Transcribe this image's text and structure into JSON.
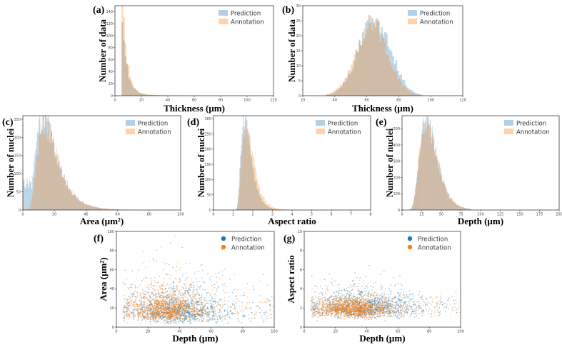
{
  "colors": {
    "prediction": "#1f77b4",
    "annotation": "#ff7f0e"
  },
  "chart_data": [
    {
      "id": "a",
      "letter": "(a)",
      "type": "histogram",
      "xlabel": "Thickness (µm)",
      "ylabel": "Number of data",
      "xlim": [
        0,
        120
      ],
      "ylim": [
        0,
        150
      ],
      "xticks": [
        0,
        20,
        40,
        60,
        80,
        100,
        120
      ],
      "yticks": [
        0,
        20,
        40,
        60,
        80,
        100,
        120,
        140
      ],
      "legend": [
        "Prediction",
        "Annotation"
      ],
      "bins": {
        "start": 5,
        "width": 1.2,
        "count": 80
      },
      "series": [
        {
          "name": "Prediction",
          "shape": "decay",
          "peak": 100,
          "peak_x": 6,
          "decay": 4
        },
        {
          "name": "Annotation",
          "shape": "decay",
          "peak": 143,
          "peak_x": 6,
          "decay": 3.6
        }
      ]
    },
    {
      "id": "b",
      "letter": "(b)",
      "type": "histogram",
      "xlabel": "Thickness (µm)",
      "ylabel": "Number of data",
      "xlim": [
        20,
        120
      ],
      "ylim": [
        0,
        30
      ],
      "xticks": [
        20,
        40,
        60,
        80,
        100,
        120
      ],
      "yticks": [
        0,
        5,
        10,
        15,
        20,
        25,
        30
      ],
      "legend": [
        "Prediction",
        "Annotation"
      ],
      "bins": {
        "start": 34,
        "width": 1.0,
        "count": 80
      },
      "series": [
        {
          "name": "Prediction",
          "shape": "normal",
          "peak": 26,
          "mean": 65,
          "sd": 10
        },
        {
          "name": "Annotation",
          "shape": "normal",
          "peak": 24,
          "mean": 63,
          "sd": 10
        }
      ]
    },
    {
      "id": "c",
      "letter": "(c)",
      "type": "histogram",
      "xlabel": "Area (µm²)",
      "ylabel": "Number of nuclei",
      "xlim": [
        0,
        100
      ],
      "ylim": [
        0,
        260
      ],
      "xticks": [
        0,
        20,
        40,
        60,
        80,
        100
      ],
      "yticks": [
        0,
        50,
        100,
        150,
        200,
        250
      ],
      "legend": [
        "Prediction",
        "Annotation"
      ],
      "bins": {
        "start": 0,
        "width": 0.5,
        "count": 200
      },
      "series": [
        {
          "name": "Prediction",
          "shape": "lognormal",
          "peak": 255,
          "mode": 13,
          "sigma": 0.48,
          "extra": "lowfront"
        },
        {
          "name": "Annotation",
          "shape": "lognormal",
          "peak": 232,
          "mode": 14,
          "sigma": 0.46
        }
      ]
    },
    {
      "id": "d",
      "letter": "(d)",
      "type": "histogram",
      "xlabel": "Aspect ratio",
      "ylabel": "Number of nuclei",
      "xlim": [
        0,
        8
      ],
      "ylim": [
        0,
        310
      ],
      "xticks": [
        0,
        1,
        2,
        3,
        4,
        5,
        6,
        7,
        8
      ],
      "yticks": [
        0,
        50,
        100,
        150,
        200,
        250,
        300
      ],
      "legend": [
        "Prediction",
        "Annotation"
      ],
      "bins": {
        "start": 1,
        "width": 0.04,
        "count": 175
      },
      "series": [
        {
          "name": "Prediction",
          "shape": "lognormal_shift",
          "peak": 305,
          "mode": 1.6,
          "sigma": 0.42,
          "shift": 1
        },
        {
          "name": "Annotation",
          "shape": "lognormal_shift",
          "peak": 280,
          "mode": 1.65,
          "sigma": 0.44,
          "shift": 1
        }
      ]
    },
    {
      "id": "e",
      "letter": "(e)",
      "type": "histogram",
      "xlabel": "Depth (µm)",
      "ylabel": "Number of nuclei",
      "xlim": [
        0,
        200
      ],
      "ylim": [
        0,
        580
      ],
      "xticks": [
        0,
        25,
        50,
        75,
        100,
        125,
        150,
        175,
        200
      ],
      "yticks": [
        0,
        100,
        200,
        300,
        400,
        500
      ],
      "legend": [
        "Prediction",
        "Annotation"
      ],
      "bins": {
        "start": 5,
        "width": 0.75,
        "count": 110
      },
      "series": [
        {
          "name": "Prediction",
          "shape": "lognormal",
          "peak": 560,
          "mode": 31,
          "sigma": 0.34
        },
        {
          "name": "Annotation",
          "shape": "lognormal",
          "peak": 548,
          "mode": 31,
          "sigma": 0.35
        }
      ]
    },
    {
      "id": "f",
      "letter": "(f)",
      "type": "scatter",
      "xlabel": "Depth (µm)",
      "ylabel": "Area (µm²)",
      "xlim": [
        0,
        100
      ],
      "ylim": [
        0,
        100
      ],
      "xticks": [
        0,
        20,
        40,
        60,
        80,
        100
      ],
      "yticks": [
        0,
        20,
        40,
        60,
        80,
        100
      ],
      "legend": [
        "Prediction",
        "Annotation"
      ],
      "series": [
        {
          "name": "Prediction",
          "n": 1400,
          "x_mean": 38,
          "x_sd": 16,
          "y_mode": 14,
          "y_sigma": 0.55
        },
        {
          "name": "Annotation",
          "n": 1500,
          "x_mean": 32,
          "x_sd": 13,
          "y_mode": 16,
          "y_sigma": 0.45
        }
      ]
    },
    {
      "id": "g",
      "letter": "(g)",
      "type": "scatter",
      "xlabel": "Depth (µm)",
      "ylabel": "Aspect ratio",
      "xlim": [
        0,
        100
      ],
      "ylim": [
        0,
        10
      ],
      "xticks": [
        0,
        20,
        40,
        60,
        80,
        100
      ],
      "yticks": [
        0,
        2,
        4,
        6,
        8,
        10
      ],
      "legend": [
        "Prediction",
        "Annotation"
      ],
      "series": [
        {
          "name": "Prediction",
          "n": 1400,
          "x_mean": 38,
          "x_sd": 17,
          "y_mode": 1.9,
          "y_sigma": 0.35
        },
        {
          "name": "Annotation",
          "n": 1500,
          "x_mean": 32,
          "x_sd": 13,
          "y_mode": 1.8,
          "y_sigma": 0.3
        }
      ]
    }
  ]
}
